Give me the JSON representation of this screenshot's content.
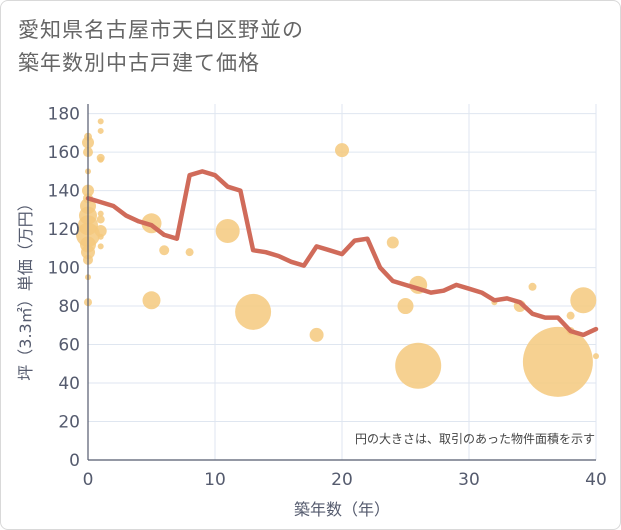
{
  "title_line1": "愛知県名古屋市天白区野並の",
  "title_line2": "築年数別中古戸建て価格",
  "chart_data": {
    "type": "scatter+line",
    "xlabel": "築年数（年）",
    "ylabel": "坪（3.3㎡）単価（万円）",
    "xlim": [
      0,
      40
    ],
    "ylim": [
      0,
      185
    ],
    "xticks": [
      0,
      10,
      20,
      30,
      40
    ],
    "yticks": [
      0,
      20,
      40,
      60,
      80,
      100,
      120,
      140,
      160,
      180
    ],
    "note": "円の大きさは、取引のあった物件面積を示す",
    "bubble_color": "#f5c97e",
    "line_color": "#d06b5a",
    "bubbles": [
      {
        "x": 0,
        "y": 168,
        "s": 4
      },
      {
        "x": 0,
        "y": 165,
        "s": 6
      },
      {
        "x": 0,
        "y": 160,
        "s": 5
      },
      {
        "x": 0,
        "y": 150,
        "s": 3
      },
      {
        "x": 0,
        "y": 140,
        "s": 6
      },
      {
        "x": 0,
        "y": 136,
        "s": 5
      },
      {
        "x": 0,
        "y": 132,
        "s": 8
      },
      {
        "x": 0,
        "y": 127,
        "s": 9
      },
      {
        "x": 0,
        "y": 122,
        "s": 10
      },
      {
        "x": 0,
        "y": 117,
        "s": 12
      },
      {
        "x": 0,
        "y": 112,
        "s": 8
      },
      {
        "x": 0,
        "y": 108,
        "s": 7
      },
      {
        "x": 0,
        "y": 104,
        "s": 5
      },
      {
        "x": 0,
        "y": 95,
        "s": 3
      },
      {
        "x": 0,
        "y": 82,
        "s": 4
      },
      {
        "x": 1,
        "y": 176,
        "s": 3
      },
      {
        "x": 1,
        "y": 171,
        "s": 3
      },
      {
        "x": 1,
        "y": 157,
        "s": 4
      },
      {
        "x": 1,
        "y": 156,
        "s": 3
      },
      {
        "x": 1,
        "y": 128,
        "s": 3
      },
      {
        "x": 1,
        "y": 125,
        "s": 4
      },
      {
        "x": 1,
        "y": 119,
        "s": 6
      },
      {
        "x": 1,
        "y": 116,
        "s": 3
      },
      {
        "x": 1,
        "y": 111,
        "s": 3
      },
      {
        "x": 5,
        "y": 123,
        "s": 10
      },
      {
        "x": 5,
        "y": 83,
        "s": 9
      },
      {
        "x": 6,
        "y": 109,
        "s": 5
      },
      {
        "x": 8,
        "y": 108,
        "s": 4
      },
      {
        "x": 11,
        "y": 119,
        "s": 12
      },
      {
        "x": 13,
        "y": 77,
        "s": 18
      },
      {
        "x": 18,
        "y": 65,
        "s": 7
      },
      {
        "x": 20,
        "y": 161,
        "s": 7
      },
      {
        "x": 24,
        "y": 113,
        "s": 6
      },
      {
        "x": 25,
        "y": 80,
        "s": 8
      },
      {
        "x": 26,
        "y": 91,
        "s": 9
      },
      {
        "x": 26,
        "y": 49,
        "s": 23
      },
      {
        "x": 32,
        "y": 82,
        "s": 3
      },
      {
        "x": 34,
        "y": 80,
        "s": 6
      },
      {
        "x": 35,
        "y": 90,
        "s": 4
      },
      {
        "x": 37,
        "y": 51,
        "s": 35
      },
      {
        "x": 38,
        "y": 75,
        "s": 4
      },
      {
        "x": 38,
        "y": 67,
        "s": 4
      },
      {
        "x": 39,
        "y": 83,
        "s": 13
      },
      {
        "x": 40,
        "y": 54,
        "s": 3
      }
    ],
    "trend": {
      "x": [
        0,
        1,
        2,
        3,
        4,
        5,
        6,
        7,
        8,
        9,
        10,
        11,
        12,
        13,
        14,
        15,
        16,
        17,
        18,
        19,
        20,
        21,
        22,
        23,
        24,
        25,
        26,
        27,
        28,
        29,
        30,
        31,
        32,
        33,
        34,
        35,
        36,
        37,
        38,
        39,
        40
      ],
      "y": [
        136,
        134,
        132,
        127,
        124,
        122,
        117,
        115,
        148,
        150,
        148,
        142,
        140,
        109,
        108,
        106,
        103,
        101,
        111,
        109,
        107,
        114,
        115,
        100,
        93,
        91,
        89,
        87,
        88,
        91,
        89,
        87,
        83,
        84,
        82,
        76,
        74,
        74,
        67,
        65,
        68
      ]
    }
  }
}
